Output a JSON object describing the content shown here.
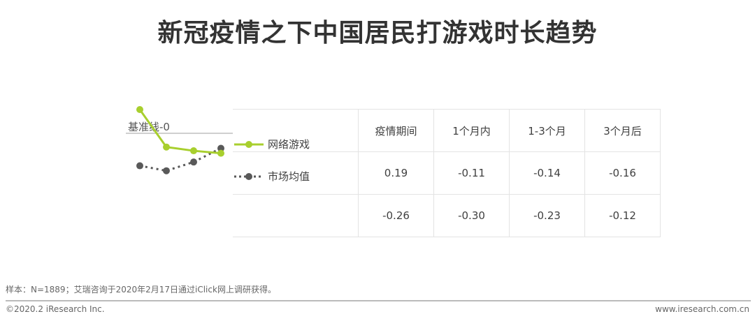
{
  "title": "新冠疫情之下中国居民打游戏时长趋势",
  "chart_data": {
    "type": "line",
    "categories": [
      "疫情期间",
      "1个月内",
      "1-3个月",
      "3个月后"
    ],
    "baseline_label": "基准线-0",
    "baseline_value": 0,
    "series": [
      {
        "name": "网络游戏",
        "values": [
          0.19,
          -0.11,
          -0.14,
          -0.16
        ],
        "color": "#a8cf2e",
        "style": "solid"
      },
      {
        "name": "市场均值",
        "values": [
          -0.26,
          -0.3,
          -0.23,
          -0.12
        ],
        "color": "#595959",
        "style": "dotted"
      }
    ],
    "value_labels": [
      [
        "0.19",
        "-0.11",
        "-0.14",
        "-0.16"
      ],
      [
        "-0.26",
        "-0.30",
        "-0.23",
        "-0.12"
      ]
    ]
  },
  "footer": {
    "source": "样本：N=1889；艾瑞咨询于2020年2月17日通过iClick网上调研获得。",
    "copyright": "©2020.2 iResearch Inc.",
    "url": "www.iresearch.com.cn"
  }
}
